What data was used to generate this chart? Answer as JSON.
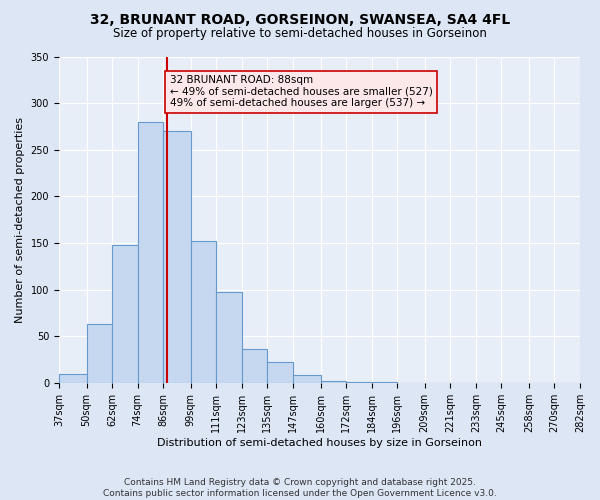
{
  "title": "32, BRUNANT ROAD, GORSEINON, SWANSEA, SA4 4FL",
  "subtitle": "Size of property relative to semi-detached houses in Gorseinon",
  "xlabel": "Distribution of semi-detached houses by size in Gorseinon",
  "ylabel": "Number of semi-detached properties",
  "property_size": 88,
  "property_label": "32 BRUNANT ROAD: 88sqm",
  "smaller_pct": 49,
  "smaller_count": 527,
  "larger_pct": 49,
  "larger_count": 537,
  "bin_edges": [
    37,
    50,
    62,
    74,
    86,
    99,
    111,
    123,
    135,
    147,
    160,
    172,
    184,
    196,
    209,
    221,
    233,
    245,
    258,
    270,
    282
  ],
  "bar_heights": [
    10,
    63,
    148,
    280,
    270,
    152,
    97,
    36,
    22,
    8,
    2,
    1,
    1,
    0,
    0,
    0,
    0,
    0,
    0,
    0
  ],
  "bar_color": "#c5d8f0",
  "bar_edge_color": "#6699cc",
  "vline_color": "#cc0000",
  "annotation_box_facecolor": "#fce8e8",
  "annotation_box_edgecolor": "#cc0000",
  "background_color": "#dce6f5",
  "plot_bg_color": "#e8eef8",
  "grid_color": "#ffffff",
  "ylim": [
    0,
    350
  ],
  "yticks": [
    0,
    50,
    100,
    150,
    200,
    250,
    300,
    350
  ],
  "footer": "Contains HM Land Registry data © Crown copyright and database right 2025.\nContains public sector information licensed under the Open Government Licence v3.0.",
  "footer_fontsize": 6.5,
  "title_fontsize": 10,
  "subtitle_fontsize": 8.5,
  "ylabel_fontsize": 8,
  "xlabel_fontsize": 8,
  "tick_fontsize": 7,
  "annot_fontsize": 7.5
}
